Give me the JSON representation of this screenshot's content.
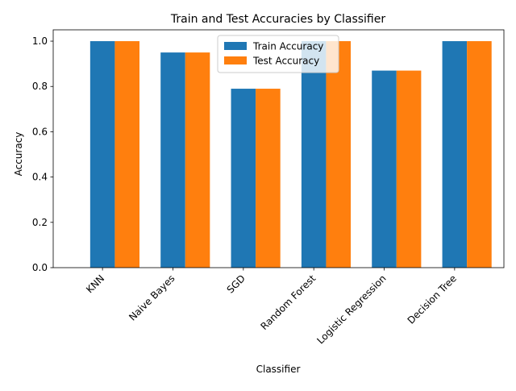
{
  "chart_data": {
    "type": "bar",
    "title": "Train and Test Accuracies by Classifier",
    "xlabel": "Classifier",
    "ylabel": "Accuracy",
    "categories": [
      "KNN",
      "Naive Bayes",
      "SGD",
      "Random Forest",
      "Logistic Regression",
      "Decision Tree"
    ],
    "series": [
      {
        "name": "Train Accuracy",
        "color": "#1f77b4",
        "values": [
          1.0,
          0.95,
          0.79,
          1.0,
          0.87,
          1.0
        ]
      },
      {
        "name": "Test Accuracy",
        "color": "#ff7f0e",
        "values": [
          1.0,
          0.95,
          0.79,
          1.0,
          0.87,
          1.0
        ]
      }
    ],
    "ylim": [
      0,
      1.05
    ],
    "yticks": [
      "0.0",
      "0.2",
      "0.4",
      "0.6",
      "0.8",
      "1.0"
    ],
    "x_tick_rotation": 45,
    "grid": false,
    "legend_position": "upper center"
  }
}
